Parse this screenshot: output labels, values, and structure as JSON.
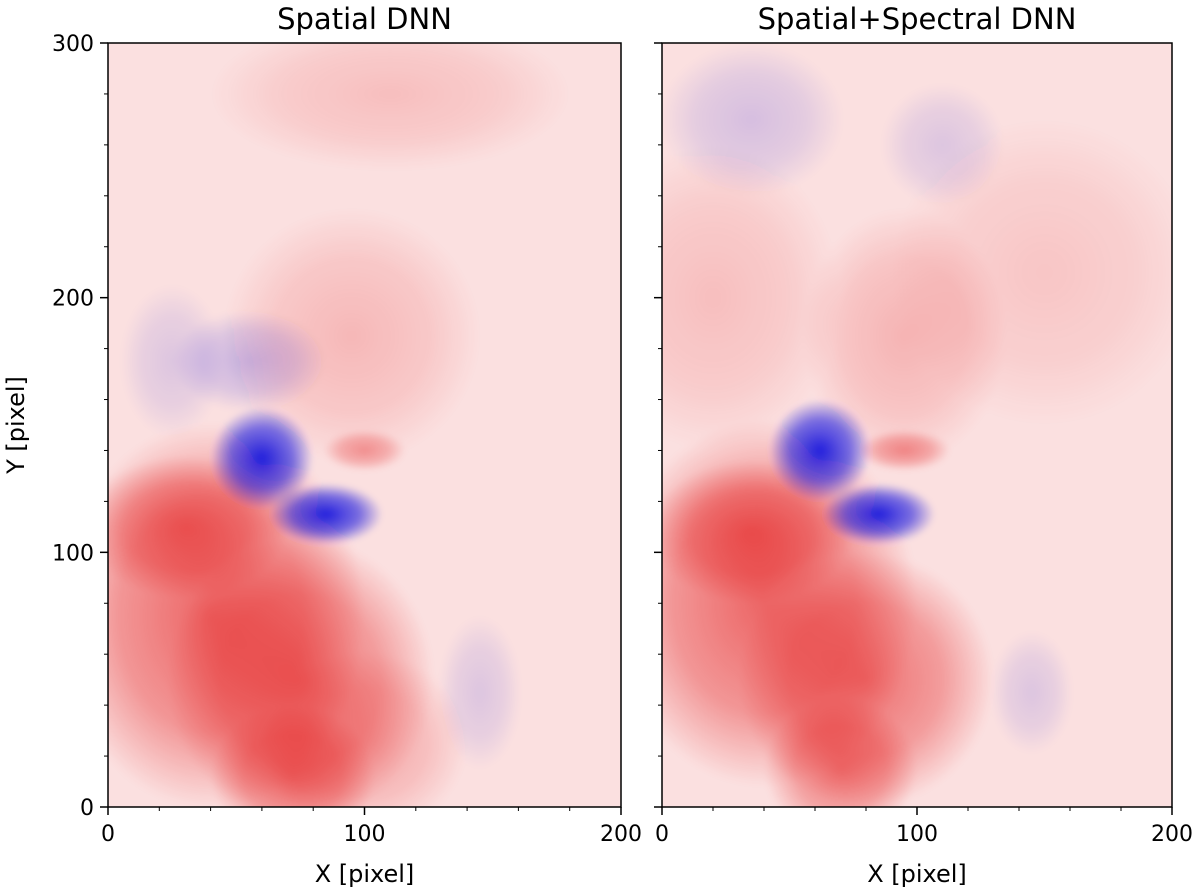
{
  "colors": {
    "positive": "#e00000",
    "negative": "#0000e0",
    "zero": "#ffffff",
    "axis": "#000000"
  },
  "chart_data": [
    {
      "type": "heatmap",
      "title": "Spatial DNN",
      "xlabel": "X [pixel]",
      "ylabel": "Y [pixel]",
      "xlim": [
        0,
        200
      ],
      "ylim": [
        0,
        300
      ],
      "xticks": [
        0,
        100,
        200
      ],
      "yticks": [
        0,
        100,
        200,
        300
      ],
      "colormap": "bwr",
      "features": [
        {
          "kind": "red",
          "x": 40,
          "y": 75,
          "sx": 30,
          "sy": 38,
          "amp": 0.55
        },
        {
          "kind": "red",
          "x": 30,
          "y": 110,
          "sx": 20,
          "sy": 14,
          "amp": 0.45
        },
        {
          "kind": "red",
          "x": 75,
          "y": 50,
          "sx": 26,
          "sy": 28,
          "amp": 0.5
        },
        {
          "kind": "red",
          "x": 72,
          "y": 12,
          "sx": 16,
          "sy": 14,
          "amp": 0.45
        },
        {
          "kind": "red",
          "x": 100,
          "y": 25,
          "sx": 20,
          "sy": 18,
          "amp": 0.25
        },
        {
          "kind": "red",
          "x": 100,
          "y": 140,
          "sx": 8,
          "sy": 4,
          "amp": 0.35
        },
        {
          "kind": "red",
          "x": 95,
          "y": 185,
          "sx": 25,
          "sy": 25,
          "amp": 0.18
        },
        {
          "kind": "red",
          "x": 110,
          "y": 280,
          "sx": 35,
          "sy": 15,
          "amp": 0.15
        },
        {
          "kind": "blue",
          "x": 60,
          "y": 137,
          "sx": 10,
          "sy": 10,
          "amp": 0.85
        },
        {
          "kind": "blue",
          "x": 85,
          "y": 115,
          "sx": 11,
          "sy": 6,
          "amp": 0.85
        },
        {
          "kind": "blue",
          "x": 55,
          "y": 175,
          "sx": 15,
          "sy": 10,
          "amp": 0.2
        },
        {
          "kind": "blue",
          "x": 25,
          "y": 175,
          "sx": 10,
          "sy": 15,
          "amp": 0.12
        },
        {
          "kind": "blue",
          "x": 145,
          "y": 45,
          "sx": 8,
          "sy": 15,
          "amp": 0.12
        }
      ]
    },
    {
      "type": "heatmap",
      "title": "Spatial+Spectral DNN",
      "xlabel": "X [pixel]",
      "ylabel": "",
      "xlim": [
        0,
        200
      ],
      "ylim": [
        0,
        300
      ],
      "xticks": [
        0,
        100,
        200
      ],
      "yticks": [
        0,
        100,
        200,
        300
      ],
      "colormap": "bwr",
      "features": [
        {
          "kind": "red",
          "x": 40,
          "y": 80,
          "sx": 30,
          "sy": 36,
          "amp": 0.55
        },
        {
          "kind": "red",
          "x": 35,
          "y": 108,
          "sx": 20,
          "sy": 14,
          "amp": 0.45
        },
        {
          "kind": "red",
          "x": 80,
          "y": 50,
          "sx": 25,
          "sy": 25,
          "amp": 0.5
        },
        {
          "kind": "red",
          "x": 70,
          "y": 15,
          "sx": 15,
          "sy": 14,
          "amp": 0.45
        },
        {
          "kind": "red",
          "x": 95,
          "y": 140,
          "sx": 9,
          "sy": 4,
          "amp": 0.4
        },
        {
          "kind": "red",
          "x": 95,
          "y": 185,
          "sx": 20,
          "sy": 25,
          "amp": 0.2
        },
        {
          "kind": "red",
          "x": 20,
          "y": 200,
          "sx": 25,
          "sy": 30,
          "amp": 0.15
        },
        {
          "kind": "red",
          "x": 150,
          "y": 210,
          "sx": 30,
          "sy": 30,
          "amp": 0.12
        },
        {
          "kind": "blue",
          "x": 62,
          "y": 140,
          "sx": 10,
          "sy": 10,
          "amp": 0.85
        },
        {
          "kind": "blue",
          "x": 85,
          "y": 115,
          "sx": 11,
          "sy": 6,
          "amp": 0.85
        },
        {
          "kind": "blue",
          "x": 35,
          "y": 270,
          "sx": 18,
          "sy": 15,
          "amp": 0.15
        },
        {
          "kind": "blue",
          "x": 110,
          "y": 260,
          "sx": 12,
          "sy": 12,
          "amp": 0.12
        },
        {
          "kind": "blue",
          "x": 145,
          "y": 45,
          "sx": 8,
          "sy": 12,
          "amp": 0.12
        }
      ]
    }
  ]
}
